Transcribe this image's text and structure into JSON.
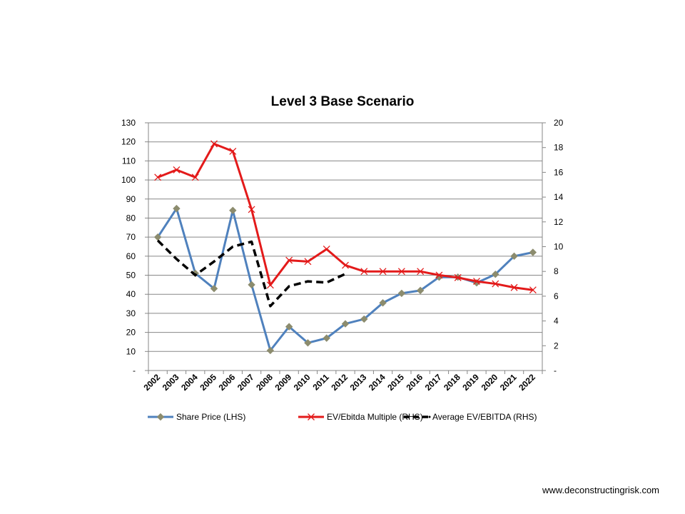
{
  "chart_data": {
    "type": "line",
    "title": "Level 3 Base Scenario",
    "categories": [
      "2002",
      "2003",
      "2004",
      "2005",
      "2006",
      "2007",
      "2008",
      "2009",
      "2010",
      "2011",
      "2012",
      "2013",
      "2014",
      "2015",
      "2016",
      "2017",
      "2018",
      "2019",
      "2020",
      "2021",
      "2022"
    ],
    "y_left": {
      "min": 0,
      "max": 130,
      "step": 10,
      "tick_labels": [
        "-",
        "10",
        "20",
        "30",
        "40",
        "50",
        "60",
        "70",
        "80",
        "90",
        "100",
        "110",
        "120",
        "130"
      ]
    },
    "y_right": {
      "min": 0,
      "max": 20,
      "step": 2,
      "tick_labels": [
        "-",
        "2",
        "4",
        "6",
        "8",
        "10",
        "12",
        "14",
        "16",
        "18",
        "20"
      ]
    },
    "series": [
      {
        "name": "Share Price (LHS)",
        "axis": "left",
        "color": "#4F81BD",
        "marker": "diamond",
        "marker_color": "#8C8C6E",
        "values": [
          70,
          85,
          51,
          43,
          84,
          45,
          10.5,
          23,
          14.5,
          17,
          24.5,
          27,
          35.5,
          40.5,
          42,
          49,
          49,
          46,
          50.5,
          60,
          62
        ]
      },
      {
        "name": "EV/Ebitda Multiple (RHS)",
        "axis": "right",
        "color": "#E31A1A",
        "marker": "x",
        "values": [
          15.6,
          16.2,
          15.6,
          18.3,
          17.7,
          13.0,
          6.9,
          8.9,
          8.8,
          9.8,
          8.5,
          8.0,
          8.0,
          8.0,
          8.0,
          7.7,
          7.5,
          7.2,
          7.0,
          6.7,
          6.5
        ]
      },
      {
        "name": "Average EV/EBITDA (RHS)",
        "axis": "right",
        "color": "#000000",
        "marker": "none",
        "dashed": true,
        "values": [
          10.5,
          9.0,
          7.7,
          8.8,
          10.0,
          10.4,
          5.2,
          6.8,
          7.2,
          7.1,
          7.8,
          null,
          null,
          null,
          null,
          null,
          null,
          null,
          null,
          null,
          null
        ]
      }
    ],
    "legend_position": "bottom",
    "grid": true
  },
  "footer": {
    "source": "www.deconstructingrisk.com"
  }
}
